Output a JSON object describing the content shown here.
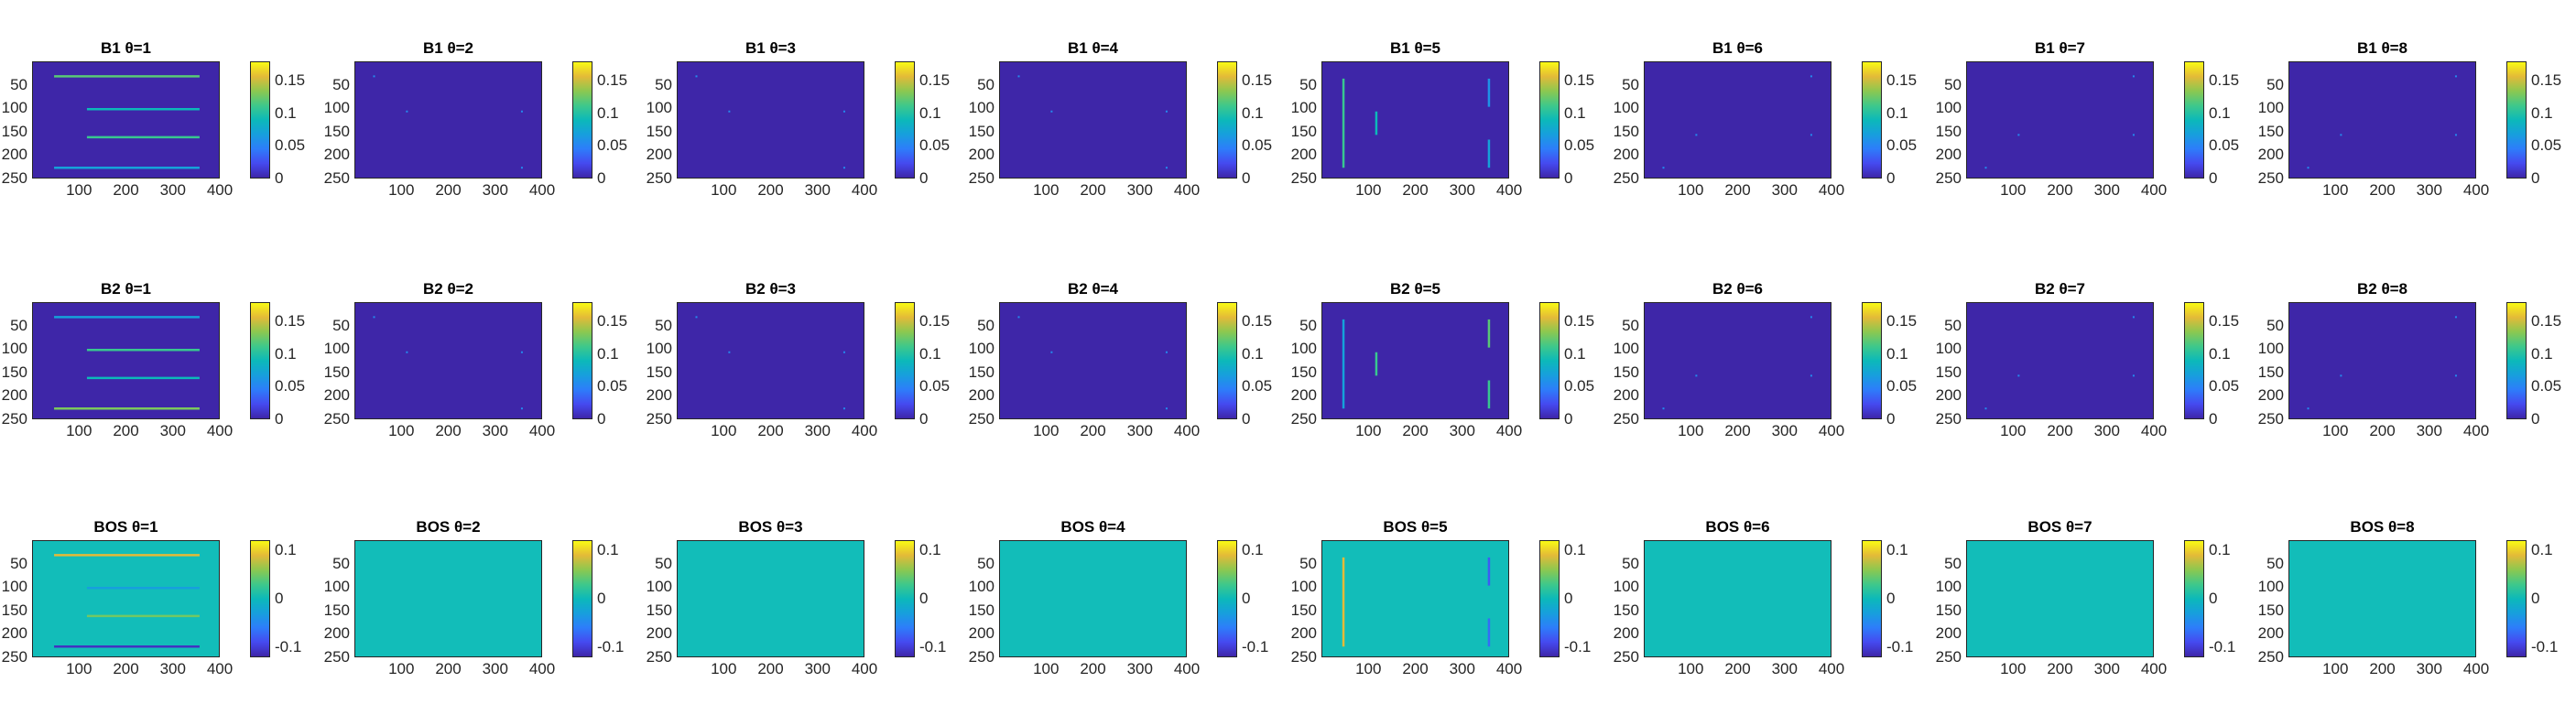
{
  "colors": {
    "positive_field_bg": "#3e26a8",
    "signed_field_bg": "#12bdb9",
    "colormap": "parula"
  },
  "chart_data": {
    "type": "heatmap",
    "image_axes": {
      "xlim": [
        0,
        400
      ],
      "ylim": [
        0,
        250
      ],
      "y_reversed": true,
      "xticks": [
        "100",
        "200",
        "300",
        "400"
      ],
      "yticks": [
        "50",
        "100",
        "150",
        "200",
        "250"
      ],
      "xtick_values": [
        100,
        200,
        300,
        400
      ],
      "ytick_values": [
        50,
        100,
        150,
        200,
        250
      ]
    },
    "rows": [
      {
        "name": "B1",
        "clim": [
          0,
          0.18
        ],
        "colorbar_ticks": [
          "0",
          "0.05",
          "0.1",
          "0.15"
        ],
        "colorbar_tick_values": [
          0,
          0.05,
          0.1,
          0.15
        ],
        "panels": [
          {
            "title": "B1 θ=1",
            "segments": [
              {
                "orientation": "h",
                "y": 30,
                "x1": 45,
                "x2": 355,
                "value": 0.12
              },
              {
                "orientation": "h",
                "y": 100,
                "x1": 115,
                "x2": 355,
                "value": 0.09
              },
              {
                "orientation": "h",
                "y": 160,
                "x1": 115,
                "x2": 355,
                "value": 0.11
              },
              {
                "orientation": "h",
                "y": 225,
                "x1": 45,
                "x2": 355,
                "value": 0.07
              }
            ],
            "dots": []
          },
          {
            "title": "B1 θ=2",
            "segments": [],
            "dots": [
              {
                "x": 40,
                "y": 30
              },
              {
                "x": 110,
                "y": 105
              },
              {
                "x": 355,
                "y": 105
              },
              {
                "x": 355,
                "y": 225
              }
            ]
          },
          {
            "title": "B1 θ=3",
            "segments": [],
            "dots": [
              {
                "x": 40,
                "y": 30
              },
              {
                "x": 110,
                "y": 105
              },
              {
                "x": 355,
                "y": 105
              },
              {
                "x": 355,
                "y": 225
              }
            ]
          },
          {
            "title": "B1 θ=4",
            "segments": [],
            "dots": [
              {
                "x": 40,
                "y": 30
              },
              {
                "x": 110,
                "y": 105
              },
              {
                "x": 355,
                "y": 105
              },
              {
                "x": 355,
                "y": 225
              }
            ]
          },
          {
            "title": "B1 θ=5",
            "segments": [
              {
                "orientation": "v",
                "x": 45,
                "y1": 35,
                "y2": 225,
                "value": 0.11
              },
              {
                "orientation": "v",
                "x": 115,
                "y1": 105,
                "y2": 155,
                "value": 0.09
              },
              {
                "orientation": "v",
                "x": 355,
                "y1": 35,
                "y2": 95,
                "value": 0.06
              },
              {
                "orientation": "v",
                "x": 355,
                "y1": 165,
                "y2": 225,
                "value": 0.07
              }
            ],
            "dots": []
          },
          {
            "title": "B1 θ=6",
            "segments": [],
            "dots": [
              {
                "x": 355,
                "y": 30
              },
              {
                "x": 110,
                "y": 155
              },
              {
                "x": 355,
                "y": 155
              },
              {
                "x": 40,
                "y": 225
              }
            ]
          },
          {
            "title": "B1 θ=7",
            "segments": [],
            "dots": [
              {
                "x": 355,
                "y": 30
              },
              {
                "x": 110,
                "y": 155
              },
              {
                "x": 355,
                "y": 155
              },
              {
                "x": 40,
                "y": 225
              }
            ]
          },
          {
            "title": "B1 θ=8",
            "segments": [],
            "dots": [
              {
                "x": 355,
                "y": 30
              },
              {
                "x": 110,
                "y": 155
              },
              {
                "x": 355,
                "y": 155
              },
              {
                "x": 40,
                "y": 225
              }
            ]
          }
        ]
      },
      {
        "name": "B2",
        "clim": [
          0,
          0.18
        ],
        "colorbar_ticks": [
          "0",
          "0.05",
          "0.1",
          "0.15"
        ],
        "colorbar_tick_values": [
          0,
          0.05,
          0.1,
          0.15
        ],
        "panels": [
          {
            "title": "B2 θ=1",
            "segments": [
              {
                "orientation": "h",
                "y": 30,
                "x1": 45,
                "x2": 355,
                "value": 0.07
              },
              {
                "orientation": "h",
                "y": 100,
                "x1": 115,
                "x2": 355,
                "value": 0.11
              },
              {
                "orientation": "h",
                "y": 160,
                "x1": 115,
                "x2": 355,
                "value": 0.09
              },
              {
                "orientation": "h",
                "y": 225,
                "x1": 45,
                "x2": 355,
                "value": 0.13
              }
            ],
            "dots": []
          },
          {
            "title": "B2 θ=2",
            "segments": [],
            "dots": [
              {
                "x": 40,
                "y": 30
              },
              {
                "x": 110,
                "y": 105
              },
              {
                "x": 355,
                "y": 105
              },
              {
                "x": 355,
                "y": 225
              }
            ]
          },
          {
            "title": "B2 θ=3",
            "segments": [],
            "dots": [
              {
                "x": 40,
                "y": 30
              },
              {
                "x": 110,
                "y": 105
              },
              {
                "x": 355,
                "y": 105
              },
              {
                "x": 355,
                "y": 225
              }
            ]
          },
          {
            "title": "B2 θ=4",
            "segments": [],
            "dots": [
              {
                "x": 40,
                "y": 30
              },
              {
                "x": 110,
                "y": 105
              },
              {
                "x": 355,
                "y": 105
              },
              {
                "x": 355,
                "y": 225
              }
            ]
          },
          {
            "title": "B2 θ=5",
            "segments": [
              {
                "orientation": "v",
                "x": 45,
                "y1": 35,
                "y2": 225,
                "value": 0.07
              },
              {
                "orientation": "v",
                "x": 115,
                "y1": 105,
                "y2": 155,
                "value": 0.11
              },
              {
                "orientation": "v",
                "x": 355,
                "y1": 35,
                "y2": 95,
                "value": 0.12
              },
              {
                "orientation": "v",
                "x": 355,
                "y1": 165,
                "y2": 225,
                "value": 0.11
              }
            ],
            "dots": []
          },
          {
            "title": "B2 θ=6",
            "segments": [],
            "dots": [
              {
                "x": 355,
                "y": 30
              },
              {
                "x": 110,
                "y": 155
              },
              {
                "x": 355,
                "y": 155
              },
              {
                "x": 40,
                "y": 225
              }
            ]
          },
          {
            "title": "B2 θ=7",
            "segments": [],
            "dots": [
              {
                "x": 355,
                "y": 30
              },
              {
                "x": 110,
                "y": 155
              },
              {
                "x": 355,
                "y": 155
              },
              {
                "x": 40,
                "y": 225
              }
            ]
          },
          {
            "title": "B2 θ=8",
            "segments": [],
            "dots": [
              {
                "x": 355,
                "y": 30
              },
              {
                "x": 110,
                "y": 155
              },
              {
                "x": 355,
                "y": 155
              },
              {
                "x": 40,
                "y": 225
              }
            ]
          }
        ]
      },
      {
        "name": "BOS",
        "clim": [
          -0.12,
          0.12
        ],
        "colorbar_ticks": [
          "-0.1",
          "0",
          "0.1"
        ],
        "colorbar_tick_values": [
          -0.1,
          0,
          0.1
        ],
        "panels": [
          {
            "title": "BOS θ=1",
            "segments": [
              {
                "orientation": "h",
                "y": 30,
                "x1": 45,
                "x2": 355,
                "value": 0.09
              },
              {
                "orientation": "h",
                "y": 100,
                "x1": 115,
                "x2": 355,
                "value": -0.03
              },
              {
                "orientation": "h",
                "y": 160,
                "x1": 115,
                "x2": 355,
                "value": 0.05
              },
              {
                "orientation": "h",
                "y": 225,
                "x1": 45,
                "x2": 355,
                "value": -0.11
              }
            ],
            "dots": []
          },
          {
            "title": "BOS θ=2",
            "segments": [],
            "dots": []
          },
          {
            "title": "BOS θ=3",
            "segments": [],
            "dots": []
          },
          {
            "title": "BOS θ=4",
            "segments": [],
            "dots": []
          },
          {
            "title": "BOS θ=5",
            "segments": [
              {
                "orientation": "v",
                "x": 45,
                "y1": 35,
                "y2": 225,
                "value": 0.09
              },
              {
                "orientation": "v",
                "x": 355,
                "y1": 35,
                "y2": 95,
                "value": -0.08
              },
              {
                "orientation": "v",
                "x": 355,
                "y1": 165,
                "y2": 225,
                "value": -0.07
              }
            ],
            "dots": []
          },
          {
            "title": "BOS θ=6",
            "segments": [],
            "dots": []
          },
          {
            "title": "BOS θ=7",
            "segments": [],
            "dots": []
          },
          {
            "title": "BOS θ=8",
            "segments": [],
            "dots": []
          }
        ]
      }
    ]
  }
}
